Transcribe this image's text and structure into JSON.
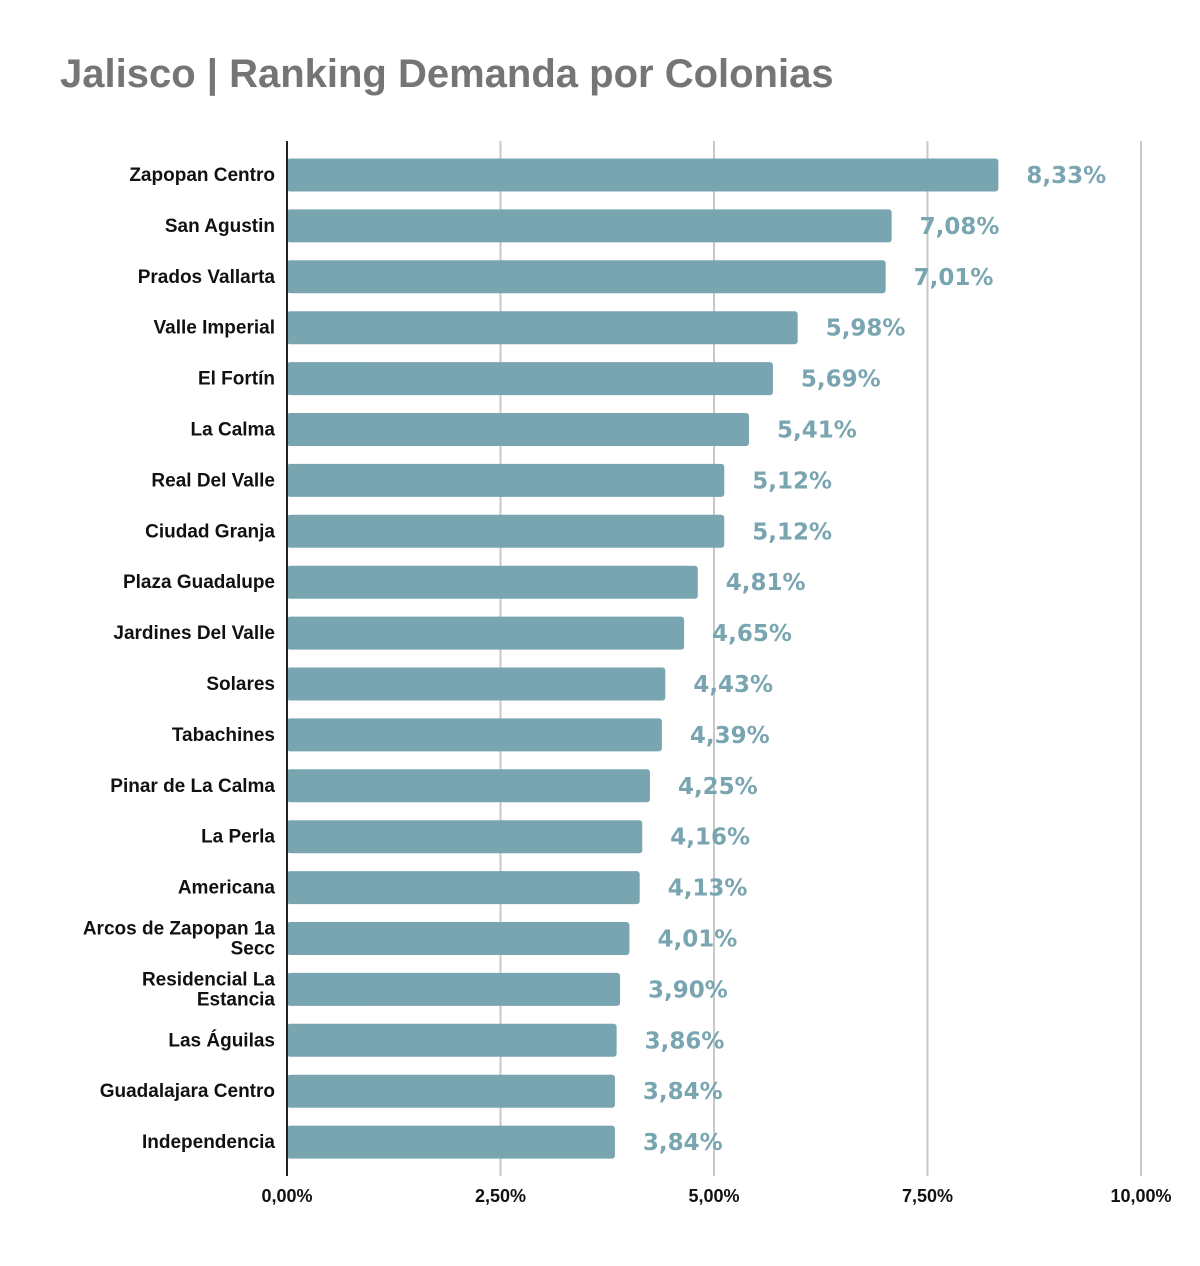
{
  "title": "Jalisco | Ranking Demanda por Colonias",
  "colors": {
    "bar": "#78a5b0",
    "value_label": "#78a5b0",
    "grid": "#c8c8c8",
    "axis": "#222222",
    "title": "#757575"
  },
  "chart_data": {
    "type": "bar",
    "orientation": "horizontal",
    "title": "Jalisco | Ranking Demanda por Colonias",
    "xlabel": "",
    "ylabel": "",
    "xlim": [
      0,
      10
    ],
    "grid": true,
    "legend": "none",
    "ticks": [
      "0,00%",
      "2,50%",
      "5,00%",
      "7,50%",
      "10,00%"
    ],
    "tick_values": [
      0,
      2.5,
      5,
      7.5,
      10
    ],
    "categories": [
      [
        "Zapopan Centro"
      ],
      [
        "San Agustin"
      ],
      [
        "Prados Vallarta"
      ],
      [
        "Valle Imperial"
      ],
      [
        "El Fortín"
      ],
      [
        "La Calma"
      ],
      [
        "Real Del Valle"
      ],
      [
        "Ciudad Granja"
      ],
      [
        "Plaza Guadalupe"
      ],
      [
        "Jardines Del Valle"
      ],
      [
        "Solares"
      ],
      [
        "Tabachines"
      ],
      [
        "Pinar de La Calma"
      ],
      [
        "La Perla"
      ],
      [
        "Americana"
      ],
      [
        "Arcos de Zapopan 1a",
        "Secc"
      ],
      [
        "Residencial La",
        "Estancia"
      ],
      [
        "Las Águilas"
      ],
      [
        "Guadalajara Centro"
      ],
      [
        "Independencia"
      ]
    ],
    "values": [
      8.33,
      7.08,
      7.01,
      5.98,
      5.69,
      5.41,
      5.12,
      5.12,
      4.81,
      4.65,
      4.43,
      4.39,
      4.25,
      4.16,
      4.13,
      4.01,
      3.9,
      3.86,
      3.84,
      3.84
    ],
    "value_labels": [
      "8,33%",
      "7,08%",
      "7,01%",
      "5,98%",
      "5,69%",
      "5,41%",
      "5,12%",
      "5,12%",
      "4,81%",
      "4,65%",
      "4,43%",
      "4,39%",
      "4,25%",
      "4,16%",
      "4,13%",
      "4,01%",
      "3,90%",
      "3,86%",
      "3,84%",
      "3,84%"
    ]
  }
}
